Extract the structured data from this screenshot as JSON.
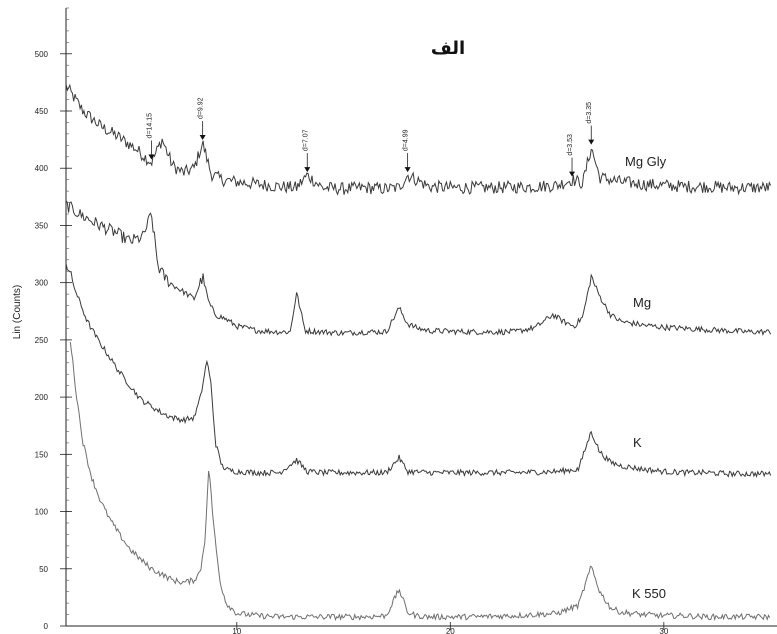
{
  "chart_data": {
    "type": "line",
    "title": "الف",
    "xlabel": "",
    "ylabel": "Lin (Counts)",
    "xlim": [
      2,
      35
    ],
    "ylim": [
      0,
      540
    ],
    "y_ticks": [
      0,
      50,
      100,
      150,
      200,
      250,
      300,
      350,
      400,
      450,
      500
    ],
    "x_ticks": [
      10,
      20,
      30
    ],
    "grid": false,
    "legend": "none",
    "series": [
      {
        "name": "Mg Gly",
        "color": "#3a3a3a",
        "x": [
          2,
          2.8,
          3.6,
          4.4,
          5.2,
          6.0,
          6.5,
          7.0,
          7.5,
          8.0,
          8.4,
          8.8,
          9.3,
          10,
          11,
          12,
          12.8,
          13.3,
          14,
          15,
          16,
          17,
          17.6,
          18,
          19,
          20,
          22,
          24,
          25,
          25.7,
          26.2,
          26.6,
          27,
          28,
          29,
          30,
          31,
          32,
          33,
          34,
          35
        ],
        "y": [
          472,
          450,
          437,
          428,
          418,
          405,
          425,
          402,
          396,
          400,
          422,
          395,
          390,
          388,
          386,
          384,
          383,
          394,
          383,
          382,
          383,
          382,
          383,
          394,
          384,
          383,
          383,
          384,
          385,
          390,
          387,
          418,
          392,
          388,
          386,
          385,
          384,
          384,
          383,
          383,
          383
        ]
      },
      {
        "name": "Mg",
        "color": "#3a3a3a",
        "x": [
          2,
          2.8,
          3.6,
          4.4,
          5.0,
          5.6,
          6.0,
          6.3,
          6.6,
          7.0,
          7.5,
          8.0,
          8.4,
          8.7,
          9.0,
          9.5,
          10,
          11,
          12,
          12.5,
          12.8,
          13.2,
          14,
          15,
          16,
          17,
          17.6,
          18.0,
          18.5,
          19,
          21,
          23,
          24,
          24.8,
          25.3,
          25.8,
          26.2,
          26.6,
          27,
          27.5,
          28,
          29,
          30,
          31,
          32,
          33,
          34,
          35
        ],
        "y": [
          368,
          358,
          350,
          343,
          336,
          340,
          360,
          315,
          305,
          298,
          292,
          286,
          305,
          282,
          272,
          268,
          262,
          258,
          257,
          257,
          291,
          258,
          257,
          256,
          257,
          257,
          278,
          264,
          260,
          258,
          257,
          257,
          261,
          272,
          266,
          262,
          270,
          305,
          288,
          272,
          266,
          263,
          261,
          260,
          259,
          258,
          257,
          257
        ]
      },
      {
        "name": "K",
        "color": "#3a3a3a",
        "x": [
          2,
          2.5,
          3.0,
          3.5,
          4.0,
          4.5,
          5.0,
          5.5,
          6.0,
          6.5,
          7.0,
          7.5,
          8.0,
          8.3,
          8.6,
          8.8,
          9.0,
          9.3,
          9.6,
          10,
          11,
          12,
          12.8,
          13.3,
          14,
          15,
          16,
          17,
          17.6,
          18,
          19,
          21,
          23,
          25,
          26,
          26.6,
          27,
          27.5,
          28,
          29,
          30,
          31,
          32,
          33,
          34,
          35
        ],
        "y": [
          318,
          290,
          266,
          250,
          236,
          222,
          210,
          198,
          192,
          186,
          182,
          180,
          182,
          200,
          232,
          210,
          160,
          140,
          136,
          135,
          134,
          134,
          145,
          135,
          134,
          134,
          134,
          134,
          147,
          135,
          134,
          134,
          134,
          135,
          137,
          170,
          152,
          143,
          140,
          137,
          135,
          134,
          134,
          133,
          133,
          133
        ]
      },
      {
        "name": "K 550",
        "color": "#6f6f6f",
        "x": [
          2.2,
          2.5,
          2.8,
          3.2,
          3.6,
          4.0,
          4.5,
          5.0,
          5.5,
          6.0,
          6.5,
          7.0,
          7.5,
          8.0,
          8.3,
          8.5,
          8.7,
          8.9,
          9.2,
          9.5,
          10,
          11,
          12,
          13,
          14,
          15,
          16,
          17,
          17.6,
          18.0,
          18.4,
          19,
          21,
          23,
          25,
          26,
          26.6,
          27,
          27.5,
          28,
          29,
          30,
          31,
          32,
          33,
          34,
          35
        ],
        "y": [
          250,
          200,
          160,
          130,
          110,
          95,
          80,
          67,
          58,
          50,
          45,
          40,
          38,
          40,
          48,
          75,
          140,
          90,
          40,
          20,
          11,
          9,
          8,
          8,
          8,
          8,
          8,
          9,
          32,
          12,
          9,
          8,
          8,
          9,
          11,
          18,
          52,
          30,
          16,
          12,
          10,
          9,
          9,
          8,
          8,
          8,
          8
        ]
      }
    ],
    "peak_markers": [
      {
        "label": "d=14.15",
        "x": 6.0,
        "series": 0
      },
      {
        "label": "d=9.92",
        "x": 8.4,
        "series": 0
      },
      {
        "label": "d=7.07",
        "x": 13.3,
        "series": 0
      },
      {
        "label": "d=4.99",
        "x": 18.0,
        "series": 0
      },
      {
        "label": "d=3.53",
        "x": 25.7,
        "series": 0
      },
      {
        "label": "d=3.35",
        "x": 26.6,
        "series": 0
      }
    ]
  }
}
